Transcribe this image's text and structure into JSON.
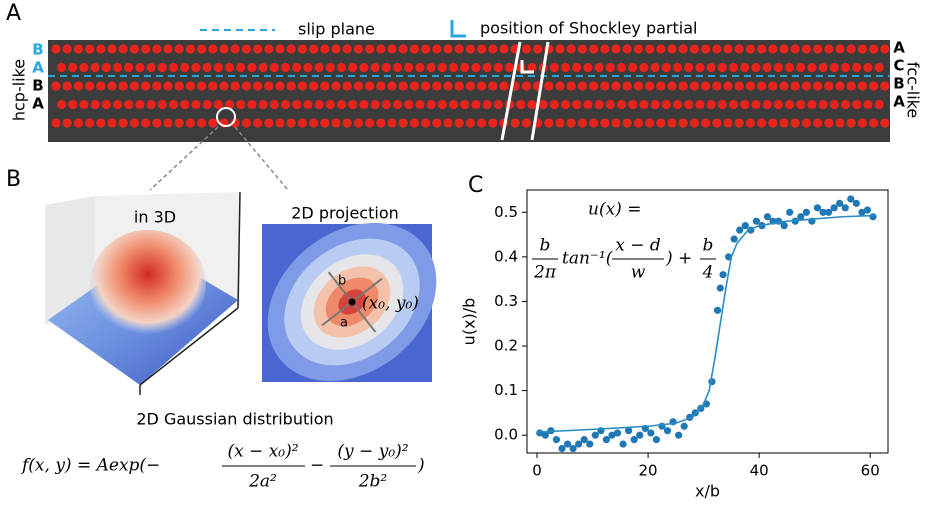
{
  "panel_a": {
    "letter": "A",
    "legend_slip": "slip plane",
    "legend_partial": "position of Shockley partial",
    "left_label": "hcp-like",
    "right_label": "fcc-like",
    "left_stack": [
      "B",
      "A",
      "B",
      "A"
    ],
    "right_stack": [
      "A",
      "C",
      "B",
      "A"
    ]
  },
  "panel_b": {
    "letter": "B",
    "title_3d": "in 3D",
    "title_2d": "2D projection",
    "axis_b": "b",
    "axis_a": "a",
    "center": "(x₀, y₀)",
    "caption": "2D Gaussian distribution",
    "formula": {
      "lhs": "f(x, y) = Aexp(−",
      "num1": "(x − x₀)²",
      "den1": "2a²",
      "minus": "−",
      "num2": "(y − y₀)²",
      "den2": "2b²",
      "close": ")"
    }
  },
  "chart_data": {
    "type": "scatter",
    "letter": "C",
    "xlabel": "x/b",
    "ylabel": "u(x)/b",
    "formula": {
      "lhs": "u(x) =",
      "num1": "b",
      "den1": "2π",
      "mid": "tan⁻¹(",
      "num2": "x − d",
      "den2": "w",
      "plus": ") +",
      "num3": "b",
      "den3": "4"
    },
    "xlim": [
      -1.8,
      63.2
    ],
    "ylim": [
      -0.04,
      0.55
    ],
    "xticks": [
      0,
      20,
      40,
      60
    ],
    "yticks": [
      {
        "value": 0,
        "label": "0.0"
      },
      0.1,
      0.2,
      0.3,
      0.4,
      0.5
    ],
    "series": [
      {
        "type": "scatter",
        "color": "#1f77b4",
        "x": [
          0.5,
          1.5,
          2.5,
          3.5,
          4.5,
          5.5,
          6.5,
          7.5,
          8.5,
          9.5,
          10.5,
          11.5,
          12.5,
          13.5,
          14.5,
          15.5,
          16.5,
          17.5,
          18.5,
          19.5,
          20.5,
          21.5,
          22.5,
          23.5,
          24.5,
          25.5,
          26.5,
          27.5,
          28.5,
          29.5,
          30.5,
          31.5,
          32.5,
          33,
          33.5,
          34.5,
          35.5,
          36.5,
          37.5,
          38.5,
          39.5,
          40.5,
          41.5,
          42.5,
          43.5,
          44.5,
          45.5,
          46.5,
          47.5,
          48.5,
          49.5,
          50.5,
          51.5,
          52.5,
          53.5,
          54.5,
          55.5,
          56.5,
          57.5,
          58.5,
          59.5,
          60.5
        ],
        "values": [
          0.005,
          0.0,
          0.01,
          -0.01,
          -0.03,
          -0.02,
          -0.03,
          -0.02,
          -0.01,
          -0.02,
          0.0,
          0.01,
          -0.01,
          0.0,
          0.005,
          -0.02,
          0.01,
          -0.01,
          0.0,
          0.015,
          0.005,
          -0.01,
          0.02,
          0.01,
          0.03,
          0.0,
          0.02,
          0.04,
          0.05,
          0.06,
          0.07,
          0.12,
          0.28,
          0.33,
          0.36,
          0.4,
          0.44,
          0.46,
          0.47,
          0.46,
          0.48,
          0.47,
          0.49,
          0.48,
          0.48,
          0.47,
          0.5,
          0.48,
          0.49,
          0.5,
          0.48,
          0.51,
          0.5,
          0.5,
          0.51,
          0.52,
          0.51,
          0.53,
          0.52,
          0.5,
          0.505,
          0.49
        ]
      },
      {
        "type": "line",
        "color": "#2a8cc4",
        "x": [
          0,
          10,
          20,
          25,
          28,
          30,
          31,
          32,
          33,
          34,
          35,
          36,
          38,
          40,
          45,
          50,
          55,
          61
        ],
        "values": [
          0.007,
          0.013,
          0.02,
          0.027,
          0.04,
          0.07,
          0.1,
          0.17,
          0.25,
          0.33,
          0.4,
          0.43,
          0.46,
          0.47,
          0.48,
          0.485,
          0.49,
          0.493
        ]
      }
    ]
  }
}
